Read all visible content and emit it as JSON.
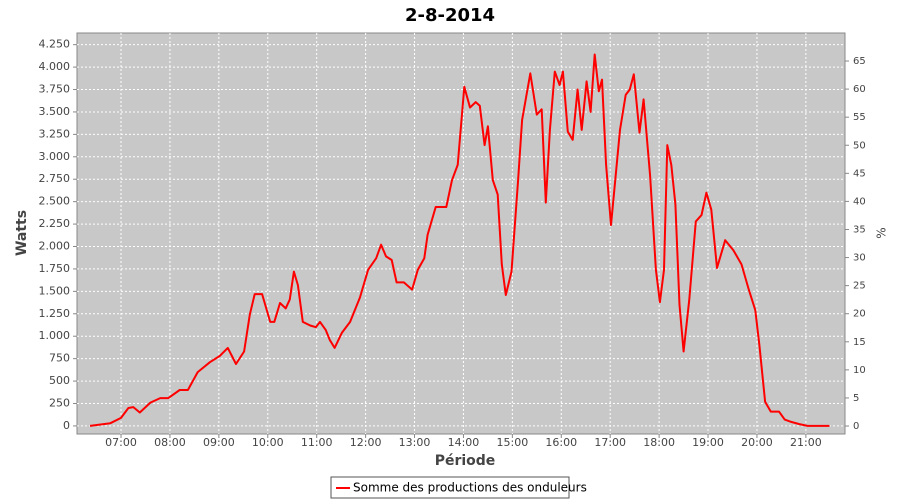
{
  "chart_data": {
    "type": "line",
    "title": "2-8-2014",
    "x_label": "Période",
    "y_label": "Watts",
    "y2_label": "%",
    "x": [
      "06:22",
      "06:47",
      "07:00",
      "07:09",
      "07:15",
      "07:23",
      "07:36",
      "07:48",
      "07:58",
      "08:12",
      "08:22",
      "08:34",
      "08:49",
      "09:01",
      "09:11",
      "09:21",
      "09:31",
      "09:38",
      "09:44",
      "09:53",
      "10:03",
      "10:08",
      "10:15",
      "10:22",
      "10:27",
      "10:32",
      "10:37",
      "10:43",
      "10:52",
      "10:59",
      "11:04",
      "11:11",
      "11:16",
      "11:22",
      "11:31",
      "11:41",
      "11:53",
      "12:03",
      "12:13",
      "12:19",
      "12:25",
      "12:32",
      "12:38",
      "12:47",
      "12:57",
      "13:04",
      "13:12",
      "13:16",
      "13:26",
      "13:39",
      "13:46",
      "13:53",
      "14:01",
      "14:08",
      "14:15",
      "14:20",
      "14:26",
      "14:30",
      "14:36",
      "14:42",
      "14:47",
      "14:52",
      "14:59",
      "15:07",
      "15:12",
      "15:22",
      "15:30",
      "15:36",
      "15:41",
      "15:46",
      "15:52",
      "15:58",
      "16:02",
      "16:08",
      "16:14",
      "16:20",
      "16:25",
      "16:31",
      "16:36",
      "16:41",
      "16:46",
      "16:50",
      "16:55",
      "17:01",
      "17:12",
      "17:19",
      "17:24",
      "17:29",
      "17:36",
      "17:41",
      "17:49",
      "17:56",
      "18:01",
      "18:06",
      "18:10",
      "18:15",
      "18:20",
      "18:25",
      "18:30",
      "18:37",
      "18:45",
      "18:52",
      "18:58",
      "19:04",
      "19:11",
      "19:21",
      "19:31",
      "19:41",
      "19:50",
      "19:58",
      "20:03",
      "20:10",
      "20:17",
      "20:27",
      "20:34",
      "20:42",
      "20:52",
      "21:02",
      "21:29"
    ],
    "series": [
      {
        "name": "Somme des productions des onduleurs",
        "color": "#ff0000",
        "values": [
          0,
          30,
          90,
          200,
          210,
          150,
          260,
          310,
          310,
          400,
          400,
          600,
          710,
          780,
          870,
          690,
          830,
          1240,
          1470,
          1470,
          1160,
          1160,
          1370,
          1310,
          1410,
          1720,
          1570,
          1160,
          1120,
          1100,
          1160,
          1070,
          960,
          870,
          1040,
          1160,
          1430,
          1740,
          1870,
          2020,
          1890,
          1850,
          1600,
          1600,
          1520,
          1740,
          1870,
          2130,
          2440,
          2440,
          2740,
          2910,
          3780,
          3550,
          3610,
          3570,
          3130,
          3340,
          2740,
          2580,
          1800,
          1460,
          1720,
          2740,
          3410,
          3930,
          3470,
          3530,
          2490,
          3300,
          3950,
          3800,
          3950,
          3280,
          3190,
          3750,
          3300,
          3840,
          3500,
          4140,
          3730,
          3860,
          2910,
          2240,
          3300,
          3690,
          3750,
          3920,
          3270,
          3640,
          2790,
          1740,
          1380,
          1740,
          3130,
          2910,
          2470,
          1350,
          830,
          1410,
          2280,
          2350,
          2600,
          2410,
          1760,
          2070,
          1960,
          1800,
          1520,
          1290,
          900,
          270,
          160,
          160,
          70,
          45,
          20,
          0,
          0
        ]
      }
    ],
    "xlim": [
      "06:06",
      "21:48"
    ],
    "xticks": [
      "07:00",
      "08:00",
      "09:00",
      "10:00",
      "11:00",
      "12:00",
      "13:00",
      "14:00",
      "15:00",
      "16:00",
      "17:00",
      "18:00",
      "19:00",
      "20:00",
      "21:00"
    ],
    "ylim": [
      -90,
      4380
    ],
    "yticks": [
      0,
      250,
      500,
      750,
      {
        "value": 1000,
        "label": "1.000"
      },
      {
        "value": 1250,
        "label": "1.250"
      },
      {
        "value": 1500,
        "label": "1.500"
      },
      {
        "value": 1750,
        "label": "1.750"
      },
      {
        "value": 2000,
        "label": "2.000"
      },
      {
        "value": 2250,
        "label": "2.250"
      },
      {
        "value": 2500,
        "label": "2.500"
      },
      {
        "value": 2750,
        "label": "2.750"
      },
      {
        "value": 3000,
        "label": "3.000"
      },
      {
        "value": 3250,
        "label": "3.250"
      },
      {
        "value": 3500,
        "label": "3.500"
      },
      {
        "value": 3750,
        "label": "3.750"
      },
      {
        "value": 4000,
        "label": "4.000"
      },
      {
        "value": 4250,
        "label": "4.250"
      }
    ],
    "y2lim": [
      -1.42,
      69.99
    ],
    "y2ticks": [
      0,
      5,
      10,
      15,
      20,
      25,
      30,
      35,
      40,
      45,
      50,
      55,
      60,
      65
    ],
    "grid": true
  }
}
